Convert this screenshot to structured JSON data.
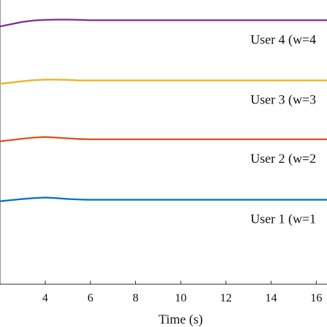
{
  "chart_data": {
    "type": "line",
    "xlabel": "Time (s)",
    "ylabel": "",
    "title": "",
    "xlim": [
      0,
      17
    ],
    "xticks": [
      4,
      6,
      8,
      10,
      12,
      14,
      16
    ],
    "grid": false,
    "ylim": [
      0,
      100
    ],
    "series": [
      {
        "name": "User 4 (w=4)",
        "label_text": "User 4 (w=4",
        "color": "#7E2F8E",
        "x": [
          0,
          1,
          2,
          3,
          3.5,
          4,
          4.5,
          5,
          5.5,
          6,
          7,
          8,
          10,
          12,
          14,
          16,
          17
        ],
        "y": [
          86.6,
          88.5,
          90.7,
          92.3,
          92.8,
          93.0,
          93.1,
          93.1,
          93.0,
          92.9,
          92.9,
          92.9,
          92.9,
          92.9,
          92.9,
          92.9,
          92.9
        ]
      },
      {
        "name": "User 3 (w=3)",
        "label_text": "User 3 (w=3",
        "color": "#EDB120",
        "x": [
          0,
          1,
          2,
          3,
          3.5,
          4,
          4.5,
          5,
          5.5,
          6,
          7,
          8,
          10,
          12,
          14,
          16,
          17
        ],
        "y": [
          68.4,
          69.4,
          70.5,
          71.4,
          71.8,
          72.0,
          72.0,
          71.9,
          71.7,
          71.7,
          71.7,
          71.7,
          71.7,
          71.7,
          71.7,
          71.7,
          71.7
        ]
      },
      {
        "name": "User 2 (w=2)",
        "label_text": "User 2 (w=2",
        "color": "#D95319",
        "x": [
          0,
          1,
          2,
          3,
          3.5,
          4,
          4.5,
          5,
          5.5,
          6,
          7,
          8,
          10,
          12,
          14,
          16,
          17
        ],
        "y": [
          48.4,
          49.3,
          50.3,
          51.2,
          51.6,
          51.8,
          51.6,
          51.3,
          51.1,
          51.0,
          51.0,
          51.0,
          51.0,
          51.0,
          51.0,
          51.0,
          51.0
        ]
      },
      {
        "name": "User 1 (w=1)",
        "label_text": "User 1 (w=1",
        "color": "#0072BD",
        "x": [
          0,
          1,
          2,
          3,
          3.5,
          4,
          4.5,
          5,
          5.5,
          6,
          7,
          8,
          10,
          12,
          14,
          16,
          17
        ],
        "y": [
          27.4,
          28.2,
          29.2,
          30.0,
          30.3,
          30.5,
          30.3,
          30.0,
          29.8,
          29.7,
          29.7,
          29.7,
          29.7,
          29.7,
          29.7,
          29.7,
          29.7
        ]
      }
    ]
  }
}
